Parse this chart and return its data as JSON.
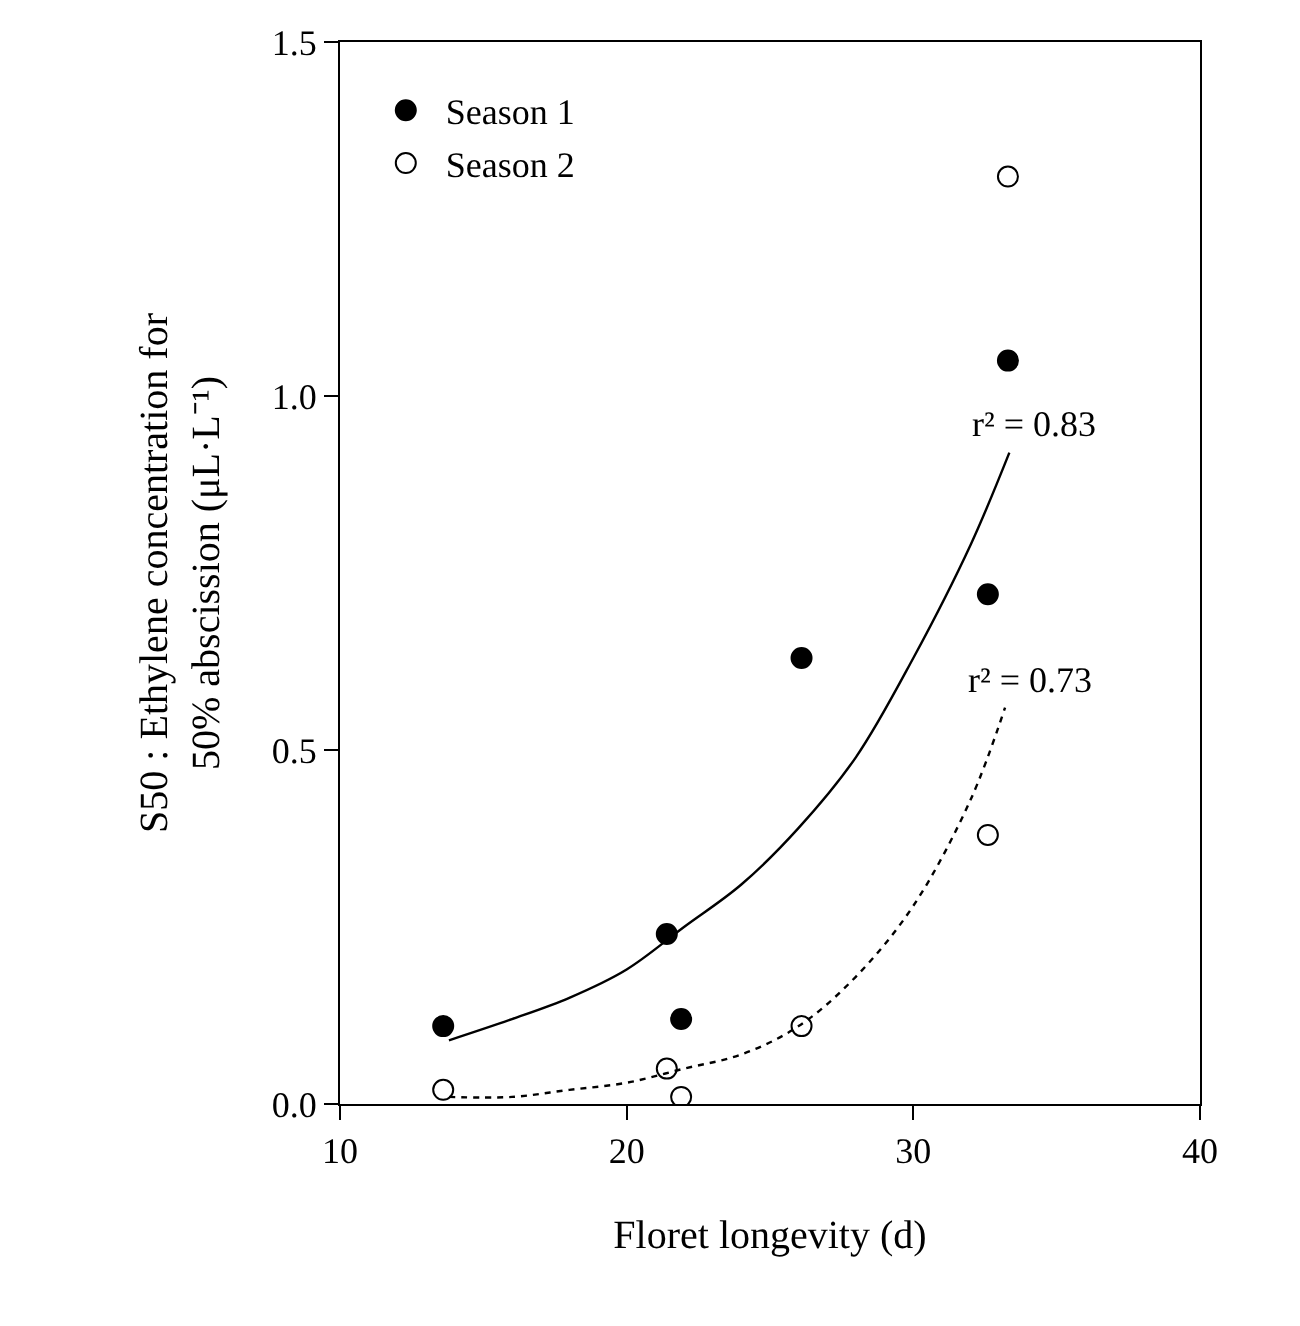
{
  "chart_data": {
    "type": "scatter",
    "xlabel": "Floret longevity (d)",
    "ylabel": "S50 : Ethylene concentration for\n50% abscission (μL·L⁻¹)",
    "series": [
      {
        "name": "Season 1",
        "color": "#000000",
        "marker": "circle",
        "x": [
          13.6,
          21.4,
          21.9,
          26.1,
          32.6,
          33.3
        ],
        "values": [
          0.11,
          0.24,
          0.12,
          0.63,
          0.72,
          1.05
        ]
      },
      {
        "name": "Season 2",
        "color": "#ffffff",
        "marker": "circle",
        "x": [
          13.6,
          21.4,
          21.9,
          26.1,
          32.6,
          33.3
        ],
        "values": [
          0.02,
          0.05,
          0.01,
          0.11,
          0.38,
          1.31
        ]
      },
      {
        "type": "line",
        "color": "#000000",
        "line_style": "solid",
        "marker": "none",
        "x": [
          13.8,
          16,
          18,
          20,
          22,
          24,
          26,
          28,
          30,
          32,
          33.35
        ],
        "values": [
          0.09,
          0.12,
          0.15,
          0.19,
          0.25,
          0.31,
          0.39,
          0.49,
          0.63,
          0.79,
          0.92
        ]
      },
      {
        "type": "line",
        "color": "#000000",
        "line_style": "dotted",
        "marker": "none",
        "x": [
          13.8,
          16,
          18,
          20,
          22,
          24,
          26,
          28,
          30,
          32,
          33.2
        ],
        "values": [
          0.01,
          0.01,
          0.02,
          0.03,
          0.05,
          0.07,
          0.11,
          0.18,
          0.28,
          0.43,
          0.56
        ]
      }
    ],
    "annotations": [
      "r² = 0.83",
      "r² = 0.73"
    ],
    "xlim": [
      10,
      40
    ],
    "xticks": [
      10,
      20,
      30,
      40
    ],
    "ylim": [
      0,
      1.5
    ],
    "yticks": [
      {
        "value": 0,
        "label": "0.0"
      },
      {
        "value": 0.5,
        "label": "0.5"
      },
      {
        "value": 1,
        "label": "1.0"
      },
      {
        "value": 1.5,
        "label": "1.5"
      }
    ],
    "legend": "top left"
  }
}
